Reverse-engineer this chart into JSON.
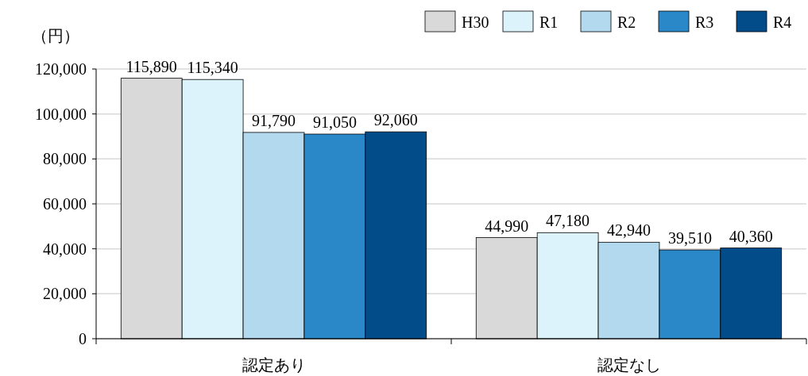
{
  "chart_data": {
    "type": "bar",
    "ylabel": "（円）",
    "categories": [
      "認定あり",
      "認定なし"
    ],
    "series": [
      {
        "name": "H30",
        "color": "#d9d9d9",
        "values": [
          115890,
          44990
        ],
        "value_labels": [
          "115,890",
          "44,990"
        ]
      },
      {
        "name": "R1",
        "color": "#ddf3fc",
        "values": [
          115340,
          47180
        ],
        "value_labels": [
          "115,340",
          "47,180"
        ]
      },
      {
        "name": "R2",
        "color": "#b3d9ef",
        "values": [
          91790,
          42940
        ],
        "value_labels": [
          "91,790",
          "42,940"
        ]
      },
      {
        "name": "R3",
        "color": "#2a88c9",
        "values": [
          91050,
          39510
        ],
        "value_labels": [
          "91,050",
          "39,510"
        ]
      },
      {
        "name": "R4",
        "color": "#034c8a",
        "values": [
          92060,
          40360
        ],
        "value_labels": [
          "92,060",
          "40,360"
        ]
      }
    ],
    "ylim": [
      0,
      120000
    ],
    "yticks": [
      0,
      {
        "value": 20000,
        "label": "20,000"
      },
      {
        "value": 40000,
        "label": "40,000"
      },
      {
        "value": 60000,
        "label": "60,000"
      },
      {
        "value": 80000,
        "label": "80,000"
      },
      {
        "value": 100000,
        "label": "100,000"
      },
      {
        "value": 120000,
        "label": "120,000"
      }
    ],
    "grid": "y",
    "legend": "top right"
  }
}
